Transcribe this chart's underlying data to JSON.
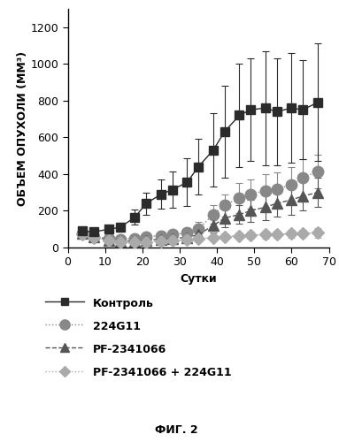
{
  "title": "",
  "xlabel": "Сутки",
  "ylabel": "ОБЪЕМ ОПУХОЛИ (ММ³)",
  "fig_caption": "ФИГ. 2",
  "xlim": [
    0,
    70
  ],
  "ylim": [
    0,
    1300
  ],
  "xticks": [
    0,
    10,
    20,
    30,
    40,
    50,
    60,
    70
  ],
  "yticks": [
    0,
    200,
    400,
    600,
    800,
    1000,
    1200
  ],
  "control": {
    "x": [
      4,
      7,
      11,
      14,
      18,
      21,
      25,
      28,
      32,
      35,
      39,
      42,
      46,
      49,
      53,
      56,
      60,
      63,
      67
    ],
    "y": [
      90,
      85,
      100,
      110,
      165,
      240,
      290,
      315,
      355,
      440,
      530,
      630,
      720,
      750,
      760,
      740,
      760,
      750,
      790
    ],
    "yerr": [
      15,
      15,
      20,
      25,
      40,
      60,
      80,
      100,
      130,
      150,
      200,
      250,
      280,
      280,
      310,
      290,
      300,
      270,
      320
    ],
    "label": "Контроль",
    "color": "#2b2b2b",
    "marker": "s",
    "linestyle": "-",
    "markersize": 7
  },
  "g224": {
    "x": [
      4,
      7,
      11,
      14,
      18,
      21,
      25,
      28,
      32,
      35,
      39,
      42,
      46,
      49,
      53,
      56,
      60,
      63,
      67
    ],
    "y": [
      75,
      60,
      50,
      45,
      50,
      60,
      65,
      70,
      80,
      100,
      180,
      230,
      270,
      290,
      310,
      320,
      340,
      380,
      415
    ],
    "yerr": [
      15,
      10,
      10,
      10,
      15,
      15,
      20,
      20,
      25,
      40,
      50,
      60,
      80,
      80,
      90,
      90,
      100,
      100,
      90
    ],
    "label": "224G11",
    "color": "#888888",
    "marker": "o",
    "linestyle": ":",
    "markersize": 9
  },
  "pf": {
    "x": [
      4,
      7,
      11,
      14,
      18,
      21,
      25,
      28,
      32,
      35,
      39,
      42,
      46,
      49,
      53,
      56,
      60,
      63,
      67
    ],
    "y": [
      75,
      60,
      40,
      35,
      35,
      40,
      45,
      50,
      55,
      70,
      120,
      160,
      180,
      200,
      220,
      240,
      260,
      280,
      300
    ],
    "yerr": [
      15,
      10,
      10,
      10,
      10,
      10,
      15,
      15,
      15,
      20,
      40,
      50,
      50,
      60,
      70,
      70,
      80,
      80,
      80
    ],
    "label": "PF-2341066",
    "color": "#555555",
    "marker": "^",
    "linestyle": "--",
    "markersize": 8
  },
  "combo": {
    "x": [
      4,
      7,
      11,
      14,
      18,
      21,
      25,
      28,
      32,
      35,
      39,
      42,
      46,
      49,
      53,
      56,
      60,
      63,
      67
    ],
    "y": [
      70,
      55,
      38,
      30,
      28,
      30,
      35,
      38,
      42,
      48,
      55,
      60,
      65,
      68,
      70,
      72,
      75,
      78,
      80
    ],
    "yerr": [
      15,
      10,
      8,
      8,
      8,
      8,
      10,
      10,
      10,
      10,
      12,
      15,
      18,
      18,
      20,
      18,
      20,
      20,
      25
    ],
    "label": "PF-2341066 + 224G11",
    "color": "#aaaaaa",
    "marker": "D",
    "linestyle": ":",
    "markersize": 7
  },
  "legend_fontsize": 9,
  "axis_fontsize": 9,
  "tick_fontsize": 9,
  "caption_fontsize": 9,
  "background_color": "#ffffff"
}
